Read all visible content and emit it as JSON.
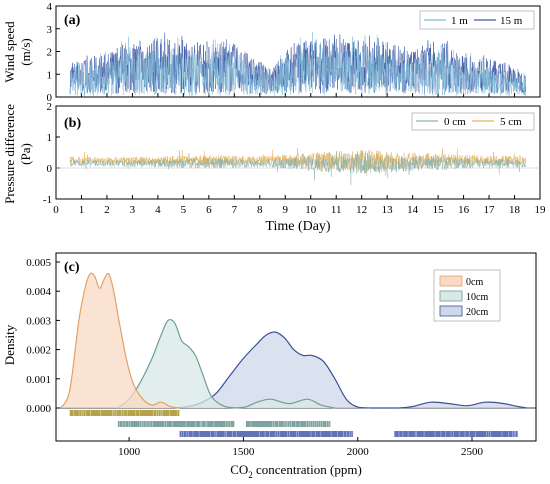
{
  "chart_data": [
    {
      "panel": "(a)",
      "type": "line",
      "ylabel_line1": "Wind speed",
      "ylabel_line2": "(m/s)",
      "ylim": [
        0,
        4
      ],
      "yticks": [
        "0",
        "1",
        "2",
        "3",
        "4"
      ],
      "xlim": [
        0,
        19
      ],
      "series": [
        {
          "name": "1 m",
          "color": "#7fb8d6",
          "values_note": "dense high-frequency series"
        },
        {
          "name": "15 m",
          "color": "#3d5aa6"
        }
      ],
      "envelope_x": [
        0.5,
        1,
        2,
        3,
        4,
        5,
        6,
        7,
        8,
        8.5,
        9,
        10,
        11,
        12,
        13,
        14,
        15,
        16,
        17,
        18,
        18.5
      ],
      "envelope_ymax": [
        1.6,
        1.8,
        2.1,
        2.8,
        2.9,
        2.7,
        2.5,
        2.6,
        1.6,
        1.2,
        2.3,
        2.9,
        2.9,
        2.8,
        2.7,
        2.3,
        2.8,
        2.0,
        1.8,
        1.4,
        1.0
      ]
    },
    {
      "panel": "(b)",
      "type": "line",
      "ylabel_line1": "Pressure difference",
      "ylabel_line2": "(Pa)",
      "ylim": [
        -1,
        2
      ],
      "yticks": [
        "-1",
        "0",
        "1",
        "2"
      ],
      "xlim": [
        0,
        19
      ],
      "xticks": [
        "0",
        "1",
        "2",
        "3",
        "4",
        "5",
        "6",
        "7",
        "8",
        "9",
        "10",
        "11",
        "12",
        "13",
        "14",
        "15",
        "16",
        "17",
        "18",
        "19"
      ],
      "xlabel": "Time (Day)",
      "series": [
        {
          "name": "0 cm",
          "color": "#8fb1a8"
        },
        {
          "name": "5 cm",
          "color": "#e7b25c"
        }
      ],
      "envelope_x": [
        0.5,
        2,
        4,
        6,
        8,
        9,
        10,
        11,
        12,
        13,
        14,
        15,
        16,
        17,
        18,
        18.5
      ],
      "envelope_amp": [
        0.25,
        0.2,
        0.25,
        0.35,
        0.25,
        0.35,
        0.5,
        0.6,
        0.7,
        0.6,
        0.5,
        0.45,
        0.35,
        0.3,
        0.3,
        0.25
      ]
    },
    {
      "panel": "(c)",
      "type": "area",
      "ylabel": "Density",
      "xlabel_main": "CO",
      "xlabel_sub": "2",
      "xlabel_rest": " concentration (ppm)",
      "ylim": [
        0,
        0.005
      ],
      "yticks": [
        "0.000",
        "0.001",
        "0.002",
        "0.003",
        "0.004",
        "0.005"
      ],
      "xlim": [
        680,
        2780
      ],
      "xticks": [
        "1000",
        "1500",
        "2000",
        "2500"
      ],
      "series": [
        {
          "name": "0cm",
          "fill": "#f9d9c4",
          "stroke": "#e0a266",
          "rug_color": "#b5a34a",
          "rug_range": [
            740,
            1220
          ],
          "x": [
            700,
            740,
            780,
            810,
            830,
            850,
            870,
            890,
            910,
            930,
            960,
            990,
            1020,
            1060,
            1100,
            1140,
            1180,
            1220
          ],
          "y": [
            0.0,
            0.0006,
            0.003,
            0.0042,
            0.0046,
            0.0045,
            0.0041,
            0.0044,
            0.0046,
            0.0041,
            0.0028,
            0.0016,
            0.0008,
            0.0003,
            0.0001,
            0.0002,
            5e-05,
            0.0
          ]
        },
        {
          "name": "10cm",
          "fill": "#d8e8e4",
          "stroke": "#6d9e99",
          "rug_color": "#7fa39e",
          "rug_ranges": [
            [
              950,
              1460
            ],
            [
              1510,
              1880
            ]
          ],
          "x": [
            950,
            1000,
            1050,
            1100,
            1140,
            1170,
            1200,
            1230,
            1260,
            1290,
            1320,
            1360,
            1420,
            1500,
            1560,
            1620,
            1700,
            1780,
            1840,
            1900
          ],
          "y": [
            0.0,
            0.0003,
            0.0009,
            0.0017,
            0.0025,
            0.003,
            0.0029,
            0.0023,
            0.0021,
            0.0018,
            0.0012,
            0.0004,
            5e-05,
            2e-05,
            0.0002,
            0.0003,
            0.00015,
            0.0003,
            0.0001,
            0.0
          ]
        },
        {
          "name": "20cm",
          "fill": "#cfd8ea",
          "stroke": "#3d4f98",
          "rug_color": "#6272b8",
          "rug_ranges": [
            [
              1220,
              1980
            ],
            [
              2160,
              2700
            ]
          ],
          "x": [
            1200,
            1260,
            1320,
            1380,
            1440,
            1500,
            1560,
            1600,
            1640,
            1680,
            1720,
            1760,
            1800,
            1850,
            1900,
            1950,
            2000,
            2060,
            2120,
            2180,
            2240,
            2320,
            2400,
            2480,
            2560,
            2640,
            2700,
            2740
          ],
          "y": [
            0.0,
            5e-05,
            0.0002,
            0.0005,
            0.0011,
            0.0017,
            0.0022,
            0.0025,
            0.0026,
            0.0024,
            0.002,
            0.0018,
            0.0018,
            0.0016,
            0.001,
            0.0003,
            3e-05,
            0.0,
            0.0,
            0.0,
            5e-05,
            0.0002,
            0.00015,
            8e-05,
            0.0002,
            0.00015,
            5e-05,
            0.0
          ]
        }
      ]
    }
  ]
}
